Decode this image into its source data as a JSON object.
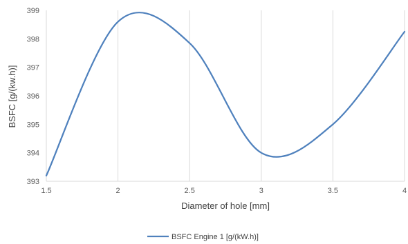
{
  "chart_data": {
    "type": "line",
    "title": "",
    "xlabel": "Diameter of hole [mm]",
    "ylabel": "BSFC [g/(kw.h)]",
    "xlim": [
      1.5,
      4
    ],
    "ylim": [
      393,
      399
    ],
    "x_ticks": [
      "1.5",
      "2",
      "2.5",
      "3",
      "3.5",
      "4"
    ],
    "y_ticks": [
      "393",
      "394",
      "395",
      "396",
      "397",
      "398",
      "399"
    ],
    "grid": "vertical",
    "legend_position": "bottom",
    "series": [
      {
        "name": "BSFC Engine 1  [g/(kW.h)]",
        "color": "#4f81bd",
        "x": [
          1.5,
          2,
          2.5,
          3,
          3.5,
          4
        ],
        "y": [
          393.2,
          398.6,
          397.85,
          394.0,
          395.0,
          398.25
        ]
      }
    ]
  }
}
